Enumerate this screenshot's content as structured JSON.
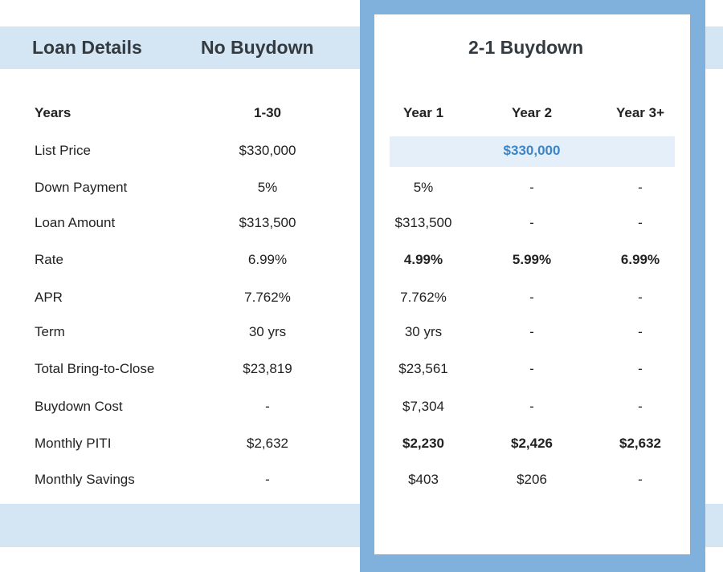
{
  "headers": {
    "loan_details": "Loan Details",
    "no_buydown": "No Buydown",
    "buydown": "2-1 Buydown"
  },
  "rows": {
    "years": {
      "label": "Years",
      "no_buydown": "1-30",
      "year1": "Year 1",
      "year2": "Year 2",
      "year3": "Year 3+"
    },
    "list_price": {
      "label": "List Price",
      "no_buydown": "$330,000",
      "buydown_all": "$330,000"
    },
    "down_payment": {
      "label": "Down Payment",
      "no_buydown": "5%",
      "year1": "5%",
      "year2": "-",
      "year3": "-"
    },
    "loan_amount": {
      "label": "Loan Amount",
      "no_buydown": "$313,500",
      "year1": "$313,500",
      "year2": "-",
      "year3": "-"
    },
    "rate": {
      "label": "Rate",
      "no_buydown": "6.99%",
      "year1": "4.99%",
      "year2": "5.99%",
      "year3": "6.99%"
    },
    "apr": {
      "label": "APR",
      "no_buydown": "7.762%",
      "year1": "7.762%",
      "year2": "-",
      "year3": "-"
    },
    "term": {
      "label": "Term",
      "no_buydown": "30 yrs",
      "year1": "30 yrs",
      "year2": "-",
      "year3": "-"
    },
    "bring_to_close": {
      "label": "Total Bring-to-Close",
      "no_buydown": "$23,819",
      "year1": "$23,561",
      "year2": "-",
      "year3": "-"
    },
    "buydown_cost": {
      "label": "Buydown Cost",
      "no_buydown": "-",
      "year1": "$7,304",
      "year2": "-",
      "year3": "-"
    },
    "monthly_piti": {
      "label": "Monthly PITI",
      "no_buydown": "$2,632",
      "year1": "$2,230",
      "year2": "$2,426",
      "year3": "$2,632"
    },
    "monthly_savings": {
      "label": "Monthly Savings",
      "no_buydown": "-",
      "year1": "$403",
      "year2": "$206",
      "year3": "-"
    }
  },
  "colors": {
    "band": "#d4e5f4",
    "panel_border": "#7fb1dc",
    "highlight": "#e5eff9",
    "accent_text": "#3a86c8"
  }
}
